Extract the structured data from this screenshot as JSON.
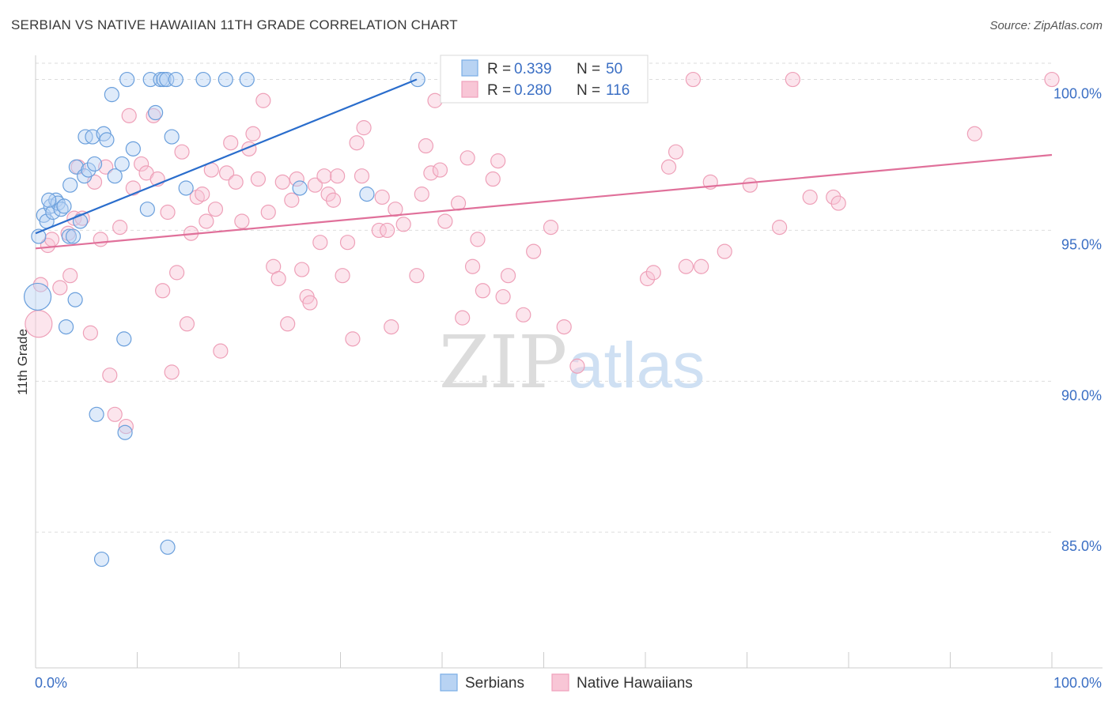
{
  "title": "SERBIAN VS NATIVE HAWAIIAN 11TH GRADE CORRELATION CHART",
  "source": "Source: ZipAtlas.com",
  "watermark": {
    "zip": "ZIP",
    "atlas": "atlas"
  },
  "colors": {
    "blue": "#7aaee6",
    "blue_line": "#2a6dcc",
    "pink": "#f0a0bb",
    "pink_line": "#e0709a",
    "label": "#3b6fc4"
  },
  "legend": {
    "rows": [
      {
        "r_label": "R = ",
        "r_value": "0.339",
        "n_label": "N = ",
        "n_value": "50"
      },
      {
        "r_label": "R = ",
        "r_value": "0.280",
        "n_label": "N = ",
        "n_value": "116"
      }
    ]
  },
  "chart_data": {
    "type": "scatter",
    "title": "SERBIAN VS NATIVE HAWAIIAN 11TH GRADE CORRELATION CHART",
    "xlabel": "",
    "ylabel": "11th Grade",
    "xlim": [
      0,
      100
    ],
    "ylim": [
      80.5,
      100.8
    ],
    "x_tick_labels": [
      "0.0%",
      "100.0%"
    ],
    "y_ticks": [
      85,
      90,
      95,
      100
    ],
    "y_tick_labels": [
      "85.0%",
      "90.0%",
      "95.0%",
      "100.0%"
    ],
    "series": [
      {
        "name": "Serbians",
        "color": "#7aaee6",
        "trend": {
          "x": [
            0,
            37.5
          ],
          "y": [
            94.9,
            100.0
          ]
        },
        "points": [
          [
            0.2,
            92.8
          ],
          [
            0.3,
            94.8
          ],
          [
            0.8,
            95.5
          ],
          [
            1.1,
            95.3
          ],
          [
            1.5,
            95.8
          ],
          [
            1.7,
            95.6
          ],
          [
            2.0,
            96.0
          ],
          [
            2.2,
            95.9
          ],
          [
            2.5,
            95.7
          ],
          [
            2.8,
            95.8
          ],
          [
            3.0,
            91.8
          ],
          [
            3.3,
            94.8
          ],
          [
            3.4,
            96.5
          ],
          [
            3.7,
            94.8
          ],
          [
            3.9,
            92.7
          ],
          [
            4.0,
            97.1
          ],
          [
            4.4,
            95.3
          ],
          [
            4.8,
            96.8
          ],
          [
            4.9,
            98.1
          ],
          [
            5.2,
            97.0
          ],
          [
            5.6,
            98.1
          ],
          [
            5.8,
            97.2
          ],
          [
            6.5,
            84.1
          ],
          [
            6.7,
            98.2
          ],
          [
            7.0,
            98.0
          ],
          [
            7.5,
            99.5
          ],
          [
            7.8,
            96.8
          ],
          [
            6.0,
            88.9
          ],
          [
            8.5,
            97.2
          ],
          [
            8.8,
            88.3
          ],
          [
            8.7,
            91.4
          ],
          [
            9.0,
            100.0
          ],
          [
            9.6,
            97.7
          ],
          [
            11.0,
            95.7
          ],
          [
            11.3,
            100.0
          ],
          [
            11.8,
            98.9
          ],
          [
            12.3,
            100.0
          ],
          [
            12.6,
            100.0
          ],
          [
            12.9,
            100.0
          ],
          [
            13.0,
            84.5
          ],
          [
            13.4,
            98.1
          ],
          [
            13.8,
            100.0
          ],
          [
            14.8,
            96.4
          ],
          [
            16.5,
            100.0
          ],
          [
            18.7,
            100.0
          ],
          [
            20.8,
            100.0
          ],
          [
            26.0,
            96.4
          ],
          [
            32.6,
            96.2
          ],
          [
            37.6,
            100.0
          ],
          [
            1.3,
            96.0
          ]
        ]
      },
      {
        "name": "Native Hawaiians",
        "color": "#f0a0bb",
        "trend": {
          "x": [
            0,
            100
          ],
          "y": [
            94.4,
            97.5
          ]
        },
        "points": [
          [
            0.3,
            91.9
          ],
          [
            0.5,
            93.2
          ],
          [
            1.2,
            94.5
          ],
          [
            1.6,
            94.7
          ],
          [
            2.4,
            93.1
          ],
          [
            3.2,
            94.9
          ],
          [
            3.4,
            93.5
          ],
          [
            3.8,
            95.4
          ],
          [
            4.2,
            97.1
          ],
          [
            4.6,
            95.4
          ],
          [
            5.4,
            91.6
          ],
          [
            5.8,
            96.6
          ],
          [
            6.4,
            94.7
          ],
          [
            6.9,
            97.1
          ],
          [
            7.3,
            90.2
          ],
          [
            7.8,
            88.9
          ],
          [
            8.3,
            95.1
          ],
          [
            8.9,
            88.5
          ],
          [
            9.2,
            98.8
          ],
          [
            9.6,
            96.4
          ],
          [
            10.4,
            97.2
          ],
          [
            10.9,
            96.9
          ],
          [
            11.6,
            98.8
          ],
          [
            12.0,
            96.7
          ],
          [
            12.5,
            93.0
          ],
          [
            13.0,
            95.6
          ],
          [
            13.4,
            90.3
          ],
          [
            13.9,
            93.6
          ],
          [
            14.4,
            97.6
          ],
          [
            14.9,
            91.9
          ],
          [
            15.3,
            94.9
          ],
          [
            15.9,
            96.1
          ],
          [
            16.4,
            96.2
          ],
          [
            16.8,
            95.3
          ],
          [
            17.3,
            97.0
          ],
          [
            17.7,
            95.7
          ],
          [
            18.2,
            91.0
          ],
          [
            18.8,
            96.9
          ],
          [
            19.2,
            97.9
          ],
          [
            19.7,
            96.6
          ],
          [
            20.3,
            95.3
          ],
          [
            21.0,
            97.7
          ],
          [
            21.4,
            98.2
          ],
          [
            21.9,
            96.7
          ],
          [
            22.4,
            99.3
          ],
          [
            22.9,
            95.6
          ],
          [
            23.4,
            93.8
          ],
          [
            23.9,
            93.4
          ],
          [
            24.3,
            96.6
          ],
          [
            24.8,
            91.9
          ],
          [
            25.2,
            96.0
          ],
          [
            25.7,
            96.7
          ],
          [
            26.2,
            93.7
          ],
          [
            26.7,
            92.8
          ],
          [
            27.0,
            92.6
          ],
          [
            27.5,
            96.5
          ],
          [
            28.0,
            94.6
          ],
          [
            28.4,
            96.8
          ],
          [
            28.8,
            96.2
          ],
          [
            29.3,
            96.0
          ],
          [
            29.7,
            96.8
          ],
          [
            30.2,
            93.5
          ],
          [
            30.7,
            94.6
          ],
          [
            31.2,
            91.4
          ],
          [
            31.6,
            97.9
          ],
          [
            32.1,
            96.8
          ],
          [
            32.3,
            98.4
          ],
          [
            33.8,
            95.0
          ],
          [
            34.1,
            96.1
          ],
          [
            34.6,
            95.0
          ],
          [
            35.0,
            91.8
          ],
          [
            35.4,
            95.7
          ],
          [
            36.2,
            95.2
          ],
          [
            37.5,
            93.5
          ],
          [
            38.0,
            96.2
          ],
          [
            38.4,
            97.8
          ],
          [
            38.9,
            96.9
          ],
          [
            39.3,
            99.3
          ],
          [
            39.8,
            97.0
          ],
          [
            40.3,
            95.3
          ],
          [
            41.0,
            100.0
          ],
          [
            41.6,
            95.9
          ],
          [
            42.0,
            92.1
          ],
          [
            42.5,
            97.4
          ],
          [
            43.0,
            93.8
          ],
          [
            43.5,
            94.7
          ],
          [
            44.0,
            93.0
          ],
          [
            45.0,
            96.7
          ],
          [
            45.5,
            97.3
          ],
          [
            46.0,
            92.8
          ],
          [
            46.5,
            93.5
          ],
          [
            47.0,
            100.0
          ],
          [
            48.0,
            92.2
          ],
          [
            49.0,
            94.3
          ],
          [
            50.7,
            95.1
          ],
          [
            52.0,
            91.8
          ],
          [
            53.3,
            90.5
          ],
          [
            55.0,
            100.0
          ],
          [
            56.8,
            100.0
          ],
          [
            60.2,
            93.4
          ],
          [
            60.8,
            93.6
          ],
          [
            62.3,
            97.1
          ],
          [
            63.0,
            97.6
          ],
          [
            64.0,
            93.8
          ],
          [
            64.7,
            100.0
          ],
          [
            65.5,
            93.8
          ],
          [
            66.4,
            96.6
          ],
          [
            67.8,
            94.3
          ],
          [
            70.3,
            96.5
          ],
          [
            73.2,
            95.1
          ],
          [
            74.5,
            100.0
          ],
          [
            76.2,
            96.1
          ],
          [
            78.5,
            96.1
          ],
          [
            79.0,
            95.9
          ],
          [
            92.4,
            98.2
          ],
          [
            100.0,
            100.0
          ]
        ]
      }
    ],
    "legend_placement": "top-center"
  }
}
